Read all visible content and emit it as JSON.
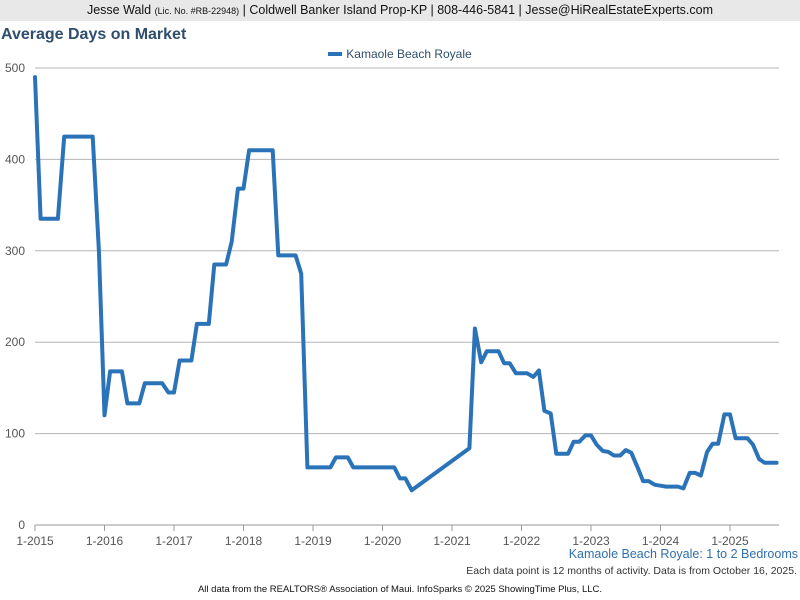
{
  "header": {
    "name": "Jesse Wald",
    "license": "(Lic. No. #RB-22948)",
    "rest": "| Coldwell Banker Island Prop-KP | 808-446-5841 | Jesse@HiRealEstateExperts.com"
  },
  "chart_data": {
    "type": "line",
    "title": "Average Days on Market",
    "xlabel": "",
    "ylabel": "",
    "x_ticks": [
      "1-2015",
      "1-2016",
      "1-2017",
      "1-2018",
      "1-2019",
      "1-2020",
      "1-2021",
      "1-2022",
      "1-2023",
      "1-2024",
      "1-2025"
    ],
    "y_ticks": [
      0,
      100,
      200,
      300,
      400,
      500
    ],
    "xlim": [
      2015.0,
      2025.7
    ],
    "ylim": [
      0,
      500
    ],
    "grid": true,
    "legend_position": "top-center",
    "series": [
      {
        "name": "Kamaole Beach Royale",
        "color": "#2a73b9",
        "points": [
          [
            2015.0,
            490
          ],
          [
            2015.08,
            335
          ],
          [
            2015.33,
            335
          ],
          [
            2015.42,
            425
          ],
          [
            2015.83,
            425
          ],
          [
            2015.92,
            300
          ],
          [
            2016.0,
            120
          ],
          [
            2016.08,
            168
          ],
          [
            2016.25,
            168
          ],
          [
            2016.33,
            133
          ],
          [
            2016.5,
            133
          ],
          [
            2016.58,
            155
          ],
          [
            2016.83,
            155
          ],
          [
            2016.92,
            145
          ],
          [
            2017.0,
            145
          ],
          [
            2017.08,
            180
          ],
          [
            2017.25,
            180
          ],
          [
            2017.33,
            220
          ],
          [
            2017.5,
            220
          ],
          [
            2017.58,
            285
          ],
          [
            2017.75,
            285
          ],
          [
            2017.83,
            310
          ],
          [
            2017.92,
            368
          ],
          [
            2018.0,
            368
          ],
          [
            2018.08,
            410
          ],
          [
            2018.42,
            410
          ],
          [
            2018.5,
            295
          ],
          [
            2018.75,
            295
          ],
          [
            2018.83,
            275
          ],
          [
            2018.92,
            63
          ],
          [
            2019.25,
            63
          ],
          [
            2019.33,
            74
          ],
          [
            2019.5,
            74
          ],
          [
            2019.58,
            63
          ],
          [
            2020.17,
            63
          ],
          [
            2020.25,
            51
          ],
          [
            2020.33,
            51
          ],
          [
            2020.42,
            38
          ],
          [
            2021.25,
            84
          ],
          [
            2021.33,
            215
          ],
          [
            2021.42,
            178
          ],
          [
            2021.5,
            190
          ],
          [
            2021.67,
            190
          ],
          [
            2021.75,
            177
          ],
          [
            2021.83,
            177
          ],
          [
            2021.92,
            166
          ],
          [
            2022.08,
            166
          ],
          [
            2022.17,
            162
          ],
          [
            2022.25,
            169
          ],
          [
            2022.33,
            125
          ],
          [
            2022.42,
            122
          ],
          [
            2022.5,
            78
          ],
          [
            2022.67,
            78
          ],
          [
            2022.75,
            91
          ],
          [
            2022.83,
            91
          ],
          [
            2022.92,
            98
          ],
          [
            2023.0,
            98
          ],
          [
            2023.08,
            88
          ],
          [
            2023.17,
            81
          ],
          [
            2023.25,
            80
          ],
          [
            2023.33,
            76
          ],
          [
            2023.42,
            76
          ],
          [
            2023.5,
            82
          ],
          [
            2023.58,
            79
          ],
          [
            2023.67,
            63
          ],
          [
            2023.75,
            48
          ],
          [
            2023.83,
            48
          ],
          [
            2023.92,
            44
          ],
          [
            2024.0,
            43
          ],
          [
            2024.08,
            42
          ],
          [
            2024.25,
            42
          ],
          [
            2024.33,
            40
          ],
          [
            2024.42,
            57
          ],
          [
            2024.5,
            57
          ],
          [
            2024.58,
            54
          ],
          [
            2024.67,
            80
          ],
          [
            2024.75,
            89
          ],
          [
            2024.83,
            89
          ],
          [
            2024.92,
            121
          ],
          [
            2025.0,
            121
          ],
          [
            2025.08,
            95
          ],
          [
            2025.25,
            95
          ],
          [
            2025.33,
            88
          ],
          [
            2025.42,
            72
          ],
          [
            2025.5,
            68
          ],
          [
            2025.67,
            68
          ]
        ]
      }
    ]
  },
  "subtitle": "Kamaole Beach Royale: 1 to 2 Bedrooms",
  "note": "Each data point is 12 months of activity. Data is from October 16, 2025.",
  "footer": "All data from the REALTORS® Association of Maui. InfoSparks © 2025 ShowingTime Plus, LLC."
}
